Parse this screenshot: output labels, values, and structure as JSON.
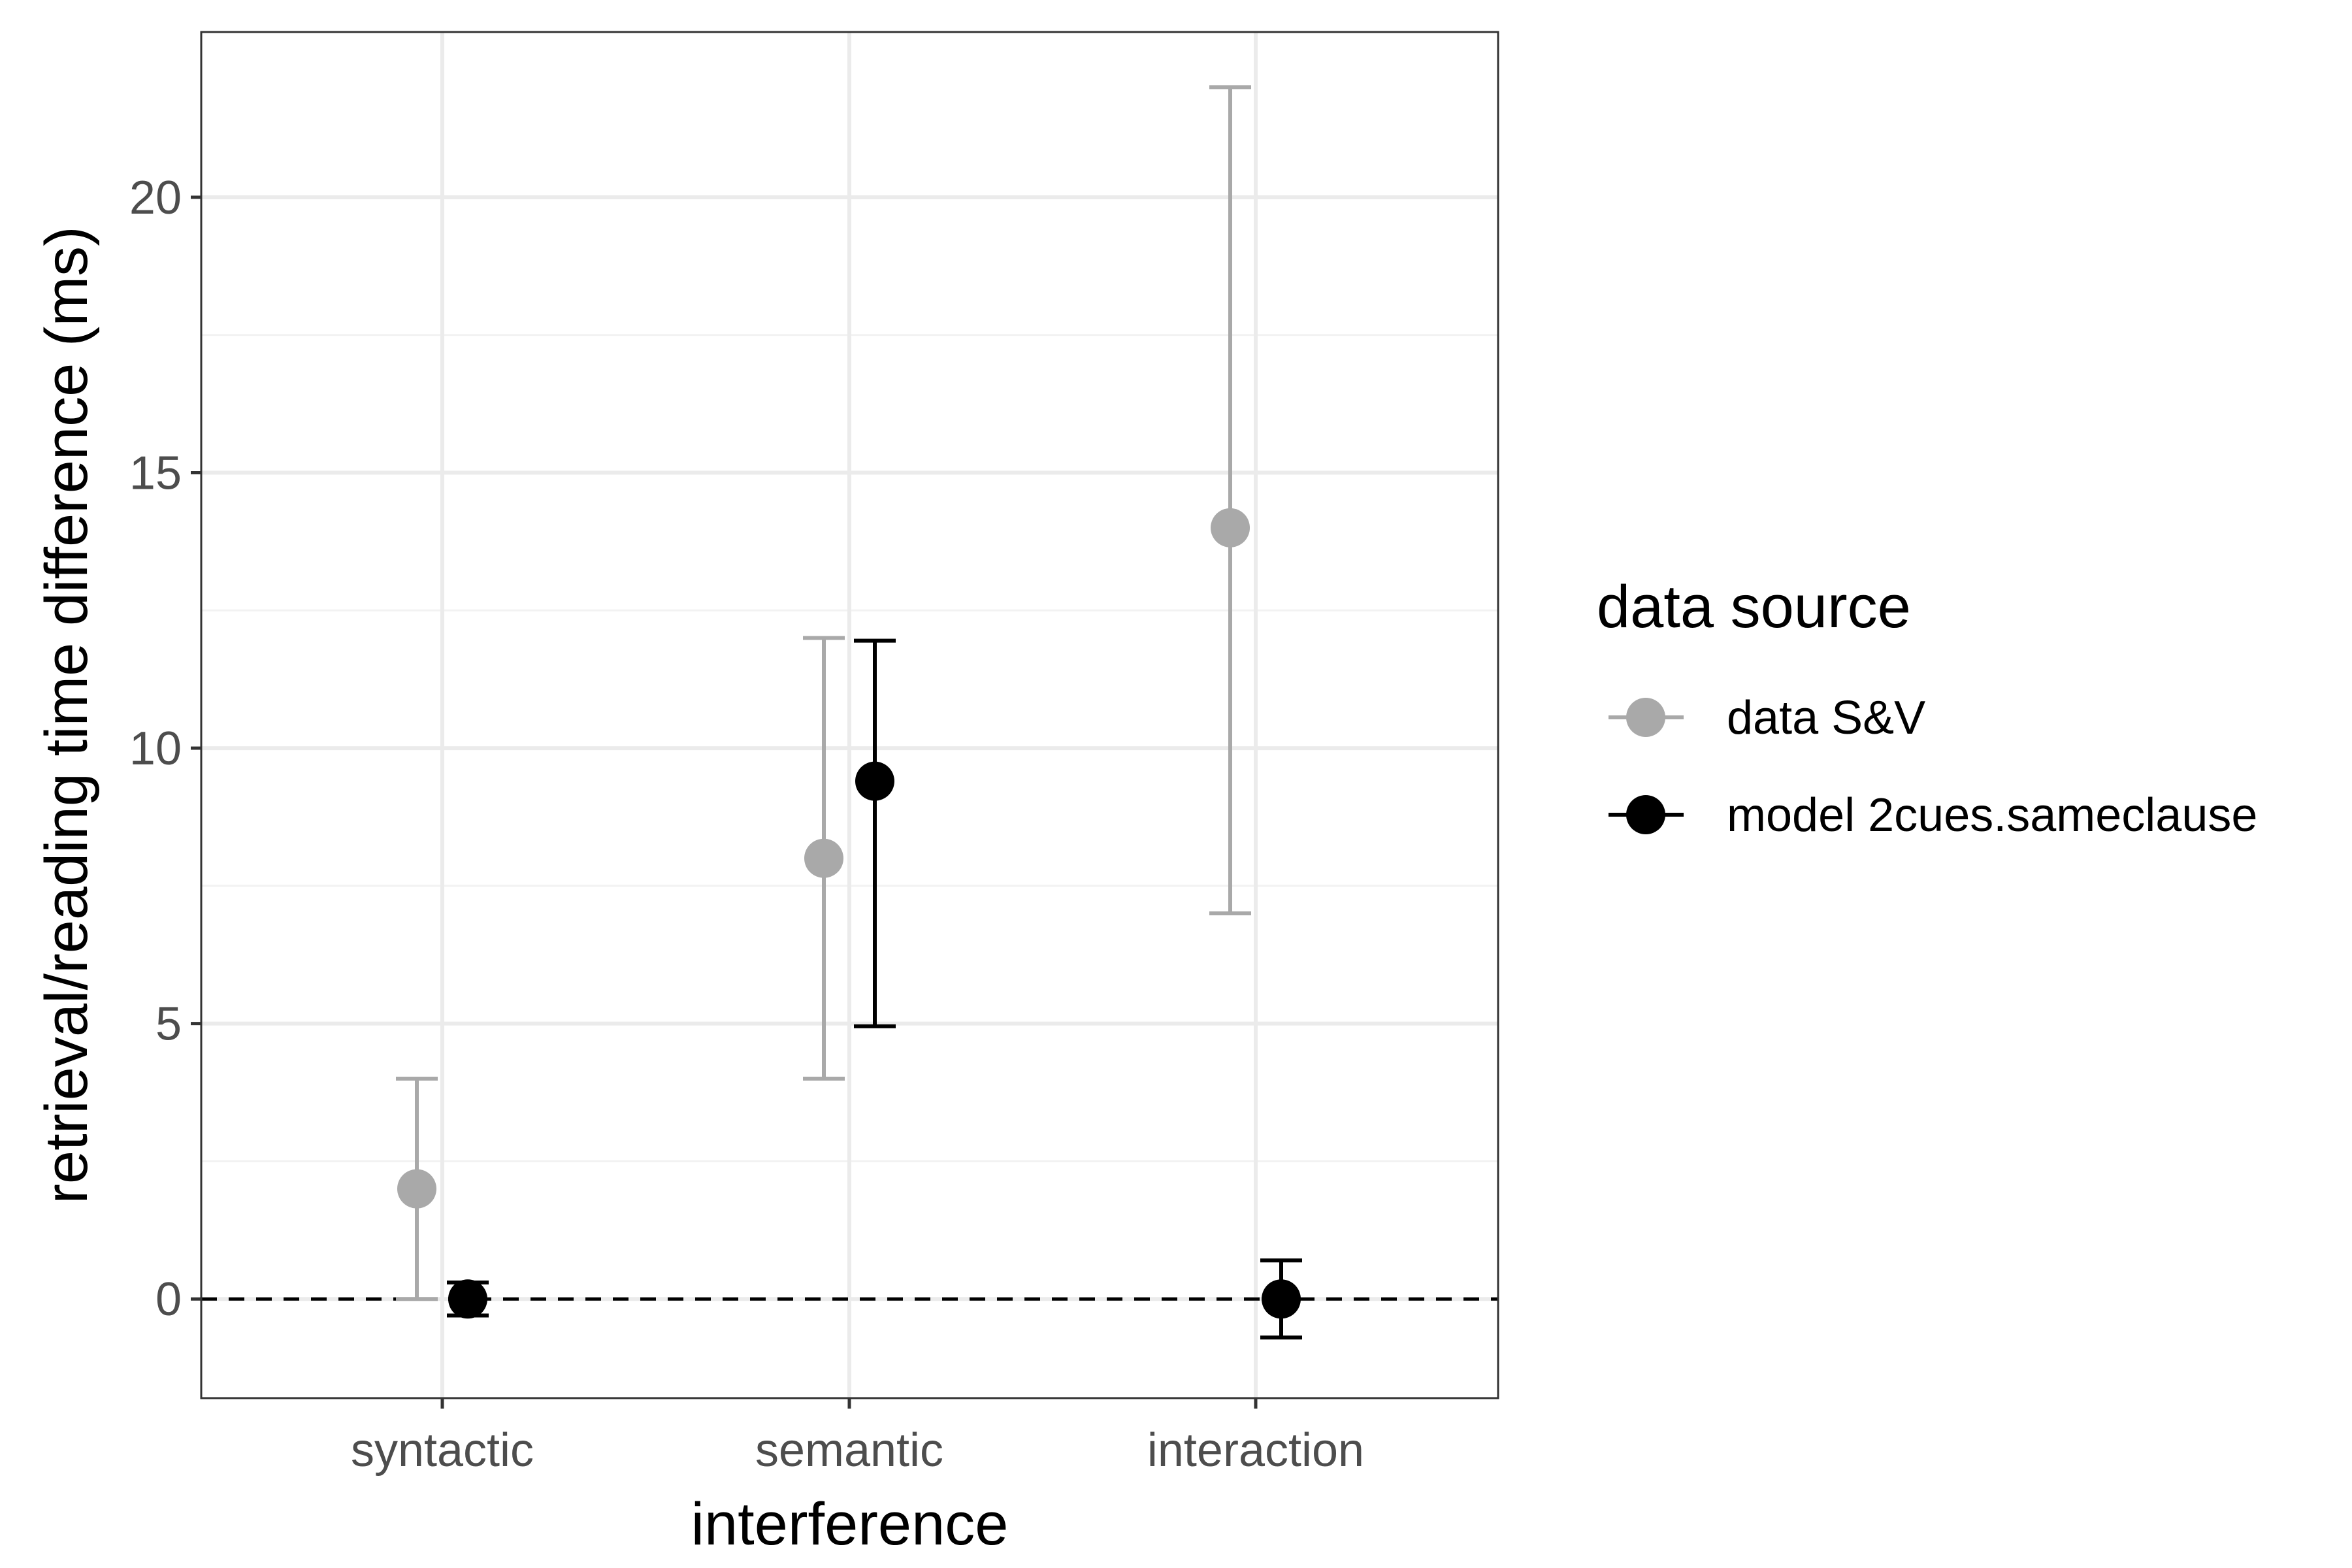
{
  "chart_data": {
    "type": "scatter",
    "xlabel": "interference",
    "ylabel": "retrieval/reading time difference (ms)",
    "categories": [
      "syntactic",
      "semantic",
      "interaction"
    ],
    "ylim": [
      -1.8,
      23
    ],
    "yticks": [
      0,
      5,
      10,
      15,
      20
    ],
    "grid": true,
    "reference_line": {
      "y": 0,
      "style": "dashed",
      "color": "#000000"
    },
    "legend": {
      "title": "data source",
      "position": "right"
    },
    "series": [
      {
        "name": "data S&V",
        "color": "#a9a9a9",
        "points": [
          {
            "category": "syntactic",
            "y": 2,
            "ymin": 0,
            "ymax": 4
          },
          {
            "category": "semantic",
            "y": 8,
            "ymin": 4,
            "ymax": 12
          },
          {
            "category": "interaction",
            "y": 14,
            "ymin": 7,
            "ymax": 22
          }
        ]
      },
      {
        "name": "model 2cues.sameclause",
        "color": "#000000",
        "points": [
          {
            "category": "syntactic",
            "y": 0,
            "ymin": -0.3,
            "ymax": 0.3
          },
          {
            "category": "semantic",
            "y": 9.4,
            "ymin": 4.95,
            "ymax": 11.95
          },
          {
            "category": "interaction",
            "y": 0,
            "ymin": -0.7,
            "ymax": 0.7
          }
        ]
      }
    ]
  }
}
